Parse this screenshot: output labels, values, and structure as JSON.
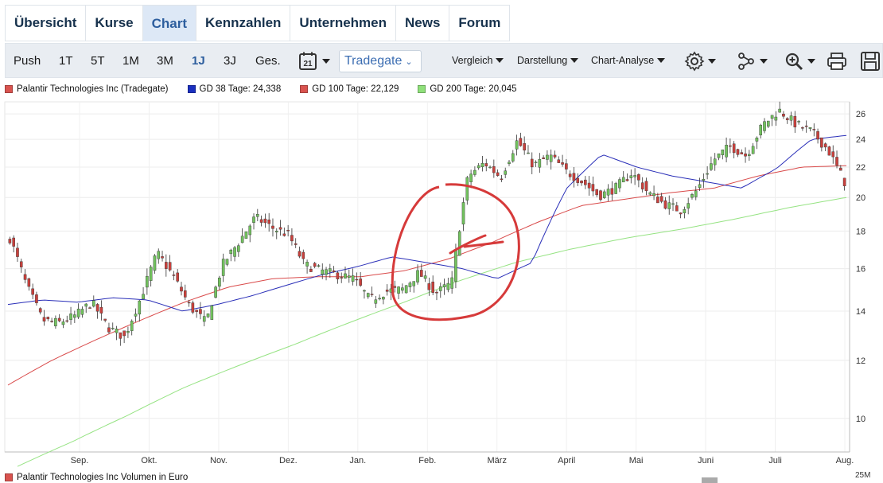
{
  "tabs": [
    {
      "label": "Übersicht",
      "active": false
    },
    {
      "label": "Kurse",
      "active": false
    },
    {
      "label": "Chart",
      "active": true
    },
    {
      "label": "Kennzahlen",
      "active": false
    },
    {
      "label": "Unternehmen",
      "active": false
    },
    {
      "label": "News",
      "active": false
    },
    {
      "label": "Forum",
      "active": false
    }
  ],
  "toolbar": {
    "periods": [
      "Push",
      "1T",
      "5T",
      "1M",
      "3M",
      "1J",
      "3J",
      "Ges."
    ],
    "active_period": "1J",
    "calendar_day": "21",
    "exchange_select": "Tradegate",
    "menus": [
      "Vergleich",
      "Darstellung",
      "Chart-Analyse"
    ],
    "icons": [
      "gear-icon",
      "network-icon",
      "zoom-in-icon",
      "print-icon",
      "save-icon"
    ]
  },
  "legend": [
    {
      "label": "Palantir Technologies Inc (Tradegate)",
      "color": "#d9534f"
    },
    {
      "label": "GD 38 Tage: 24,338",
      "color": "#1a2fbf"
    },
    {
      "label": "GD 100 Tage: 22,129",
      "color": "#d9534f"
    },
    {
      "label": "GD 200 Tage: 20,045",
      "color": "#8fe07a"
    }
  ],
  "footer": {
    "volume_label": "Palantir Technologies Inc Volumen in Euro",
    "corner_label": "25M"
  },
  "colors": {
    "up": "#72c25e",
    "down": "#c9403c",
    "gd38": "#2a2fb8",
    "gd100": "#d94a4a",
    "gd200": "#96e383",
    "annotation": "#d63a3a"
  },
  "chart_data": {
    "type": "candlestick",
    "scale": "log",
    "ylim": [
      9,
      27
    ],
    "y_ticks": [
      "26",
      "24",
      "22",
      "20",
      "18",
      "16",
      "14",
      "12",
      "10"
    ],
    "y_tick_values": [
      26,
      24,
      22,
      20,
      18,
      16,
      14,
      12,
      10
    ],
    "x_labels": [
      "Sep.",
      "Okt.",
      "Nov.",
      "Dez.",
      "Jan.",
      "Feb.",
      "März",
      "April",
      "Mai",
      "Juni",
      "Juli",
      "Aug."
    ],
    "price_path": [
      [
        "Aug.",
        17.6
      ],
      [
        "Aug.",
        15.2
      ],
      [
        "Aug.",
        13.6
      ],
      [
        "Sep.",
        13.5
      ],
      [
        "Sep.",
        13.8
      ],
      [
        "Sep.",
        14.4
      ],
      [
        "Sep.",
        13.3
      ],
      [
        "Okt.",
        12.9
      ],
      [
        "Okt.",
        14.6
      ],
      [
        "Okt.",
        16.8
      ],
      [
        "Okt.",
        15.6
      ],
      [
        "Okt.",
        14.2
      ],
      [
        "Nov.",
        13.5
      ],
      [
        "Nov.",
        16.2
      ],
      [
        "Nov.",
        17.4
      ],
      [
        "Nov.",
        18.8
      ],
      [
        "Nov.",
        18.2
      ],
      [
        "Dez.",
        17.8
      ],
      [
        "Dez.",
        16.2
      ],
      [
        "Dez.",
        15.9
      ],
      [
        "Dez.",
        15.7
      ],
      [
        "Jan.",
        15.5
      ],
      [
        "Jan.",
        14.5
      ],
      [
        "Jan.",
        14.9
      ],
      [
        "Jan.",
        15.0
      ],
      [
        "Jan.",
        15.8
      ],
      [
        "Feb.",
        14.8
      ],
      [
        "Feb.",
        15.3
      ],
      [
        "Feb.",
        21.4
      ],
      [
        "Feb.",
        22.3
      ],
      [
        "Feb.",
        21.3
      ],
      [
        "März",
        23.9
      ],
      [
        "März",
        22.1
      ],
      [
        "März",
        22.8
      ],
      [
        "April",
        21.7
      ],
      [
        "April",
        21.0
      ],
      [
        "April",
        20.1
      ],
      [
        "April",
        20.6
      ],
      [
        "April",
        21.6
      ],
      [
        "Mai",
        20.3
      ],
      [
        "Mai",
        19.6
      ],
      [
        "Mai",
        19.2
      ],
      [
        "Juni",
        20.5
      ],
      [
        "Juni",
        22.5
      ],
      [
        "Juni",
        23.5
      ],
      [
        "Juni",
        22.8
      ],
      [
        "Juli",
        25.1
      ],
      [
        "Juli",
        26.3
      ],
      [
        "Juli",
        25.2
      ],
      [
        "Juli",
        24.6
      ],
      [
        "Aug.",
        23.2
      ],
      [
        "Aug.",
        21.0
      ]
    ],
    "gd38_path": [
      14.3,
      14.5,
      14.4,
      14.6,
      14.5,
      14.0,
      14.3,
      14.7,
      15.2,
      15.7,
      16.1,
      16.6,
      16.3,
      16.0,
      15.5,
      16.3,
      20.6,
      22.9,
      22.0,
      21.4,
      21.0,
      20.6,
      21.9,
      24.0,
      24.3
    ],
    "gd100_path": [
      11.1,
      12.0,
      12.8,
      13.6,
      14.4,
      15.1,
      15.5,
      15.6,
      15.6,
      15.9,
      16.5,
      17.4,
      18.5,
      19.5,
      19.9,
      20.3,
      20.6,
      21.4,
      22.0,
      22.1
    ],
    "gd200_path": [
      8.6,
      9.3,
      10.1,
      11.0,
      11.8,
      12.6,
      13.5,
      14.4,
      15.4,
      16.3,
      17.0,
      17.6,
      18.1,
      18.7,
      19.4,
      20.0
    ]
  }
}
